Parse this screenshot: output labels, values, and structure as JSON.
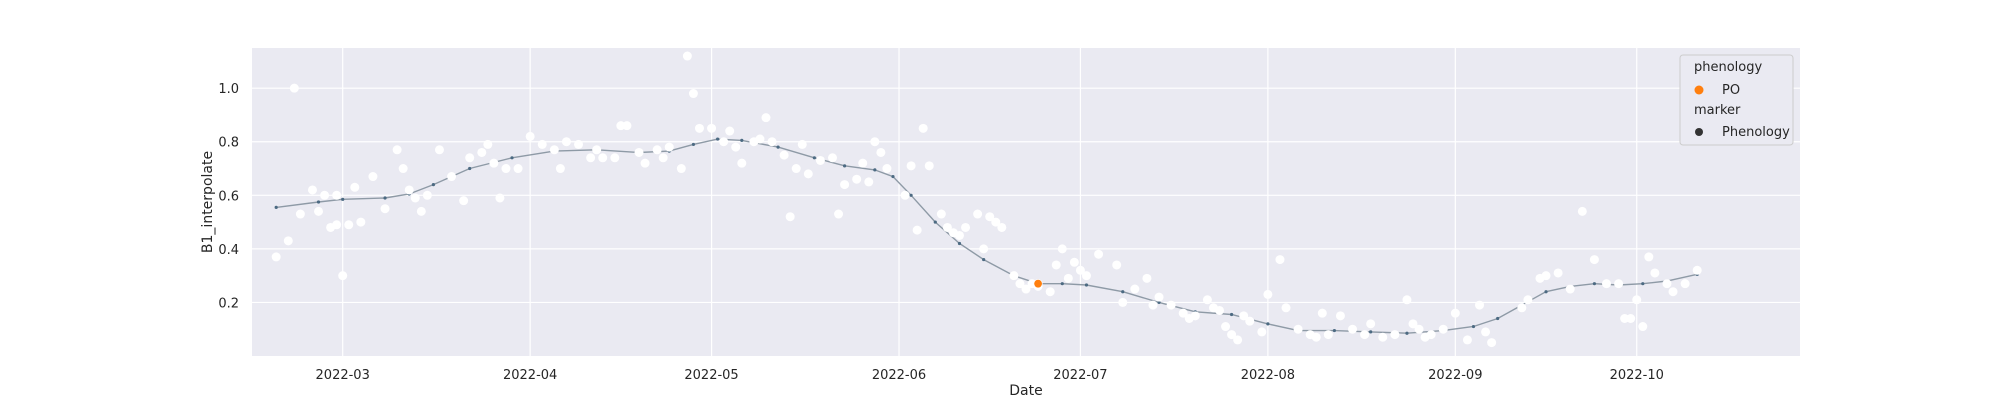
{
  "chart_data": {
    "type": "scatter",
    "title": "",
    "xlabel": "Date",
    "ylabel": "B1_interpolate",
    "x_axis": {
      "type": "date",
      "range": [
        "2022-02-14",
        "2022-10-28"
      ],
      "ticks": [
        "2022-03-01",
        "2022-04-01",
        "2022-05-01",
        "2022-06-01",
        "2022-07-01",
        "2022-08-01",
        "2022-09-01",
        "2022-10-01"
      ],
      "tick_labels": [
        "2022-03",
        "2022-04",
        "2022-05",
        "2022-06",
        "2022-07",
        "2022-08",
        "2022-09",
        "2022-10"
      ]
    },
    "y_axis": {
      "range": [
        0.0,
        1.15
      ],
      "ticks": [
        0.2,
        0.4,
        0.6,
        0.8,
        1.0
      ],
      "tick_labels": [
        "0.2",
        "0.4",
        "0.6",
        "0.8",
        "1.0"
      ]
    },
    "grid": true,
    "background": "#eaeaf2",
    "colors": {
      "observed": "#ffffff",
      "fitted": "#4c6a82",
      "phenology": "#ff7f0e",
      "marker_legend": "#333333"
    },
    "legend": {
      "placement": "top-right",
      "title_1": "phenology",
      "item_1": "PO",
      "title_2": "marker",
      "item_2": "Phenology"
    },
    "series": [
      {
        "kind": "observed-points",
        "points": [
          [
            "2022-02-18",
            0.37
          ],
          [
            "2022-02-20",
            0.43
          ],
          [
            "2022-02-21",
            1.0
          ],
          [
            "2022-02-22",
            0.53
          ],
          [
            "2022-02-24",
            0.62
          ],
          [
            "2022-02-25",
            0.54
          ],
          [
            "2022-02-26",
            0.6
          ],
          [
            "2022-02-27",
            0.48
          ],
          [
            "2022-02-28",
            0.6
          ],
          [
            "2022-02-28",
            0.49
          ],
          [
            "2022-03-01",
            0.3
          ],
          [
            "2022-03-02",
            0.49
          ],
          [
            "2022-03-03",
            0.63
          ],
          [
            "2022-03-04",
            0.5
          ],
          [
            "2022-03-06",
            0.67
          ],
          [
            "2022-03-08",
            0.55
          ],
          [
            "2022-03-10",
            0.77
          ],
          [
            "2022-03-11",
            0.7
          ],
          [
            "2022-03-12",
            0.62
          ],
          [
            "2022-03-13",
            0.59
          ],
          [
            "2022-03-14",
            0.54
          ],
          [
            "2022-03-15",
            0.6
          ],
          [
            "2022-03-17",
            0.77
          ],
          [
            "2022-03-19",
            0.67
          ],
          [
            "2022-03-21",
            0.58
          ],
          [
            "2022-03-22",
            0.74
          ],
          [
            "2022-03-24",
            0.76
          ],
          [
            "2022-03-25",
            0.79
          ],
          [
            "2022-03-26",
            0.72
          ],
          [
            "2022-03-27",
            0.59
          ],
          [
            "2022-03-28",
            0.7
          ],
          [
            "2022-03-30",
            0.7
          ],
          [
            "2022-04-01",
            0.82
          ],
          [
            "2022-04-03",
            0.79
          ],
          [
            "2022-04-05",
            0.77
          ],
          [
            "2022-04-06",
            0.7
          ],
          [
            "2022-04-07",
            0.8
          ],
          [
            "2022-04-09",
            0.79
          ],
          [
            "2022-04-11",
            0.74
          ],
          [
            "2022-04-12",
            0.77
          ],
          [
            "2022-04-13",
            0.74
          ],
          [
            "2022-04-15",
            0.74
          ],
          [
            "2022-04-16",
            0.86
          ],
          [
            "2022-04-17",
            0.86
          ],
          [
            "2022-04-19",
            0.76
          ],
          [
            "2022-04-20",
            0.72
          ],
          [
            "2022-04-22",
            0.77
          ],
          [
            "2022-04-23",
            0.74
          ],
          [
            "2022-04-24",
            0.78
          ],
          [
            "2022-04-26",
            0.7
          ],
          [
            "2022-04-27",
            1.12
          ],
          [
            "2022-04-28",
            0.98
          ],
          [
            "2022-04-29",
            0.85
          ],
          [
            "2022-05-01",
            0.85
          ],
          [
            "2022-05-03",
            0.8
          ],
          [
            "2022-05-04",
            0.84
          ],
          [
            "2022-05-05",
            0.78
          ],
          [
            "2022-05-06",
            0.72
          ],
          [
            "2022-05-08",
            0.8
          ],
          [
            "2022-05-09",
            0.81
          ],
          [
            "2022-05-10",
            0.89
          ],
          [
            "2022-05-11",
            0.8
          ],
          [
            "2022-05-13",
            0.75
          ],
          [
            "2022-05-14",
            0.52
          ],
          [
            "2022-05-15",
            0.7
          ],
          [
            "2022-05-16",
            0.79
          ],
          [
            "2022-05-17",
            0.68
          ],
          [
            "2022-05-19",
            0.73
          ],
          [
            "2022-05-21",
            0.74
          ],
          [
            "2022-05-22",
            0.53
          ],
          [
            "2022-05-23",
            0.64
          ],
          [
            "2022-05-25",
            0.66
          ],
          [
            "2022-05-26",
            0.72
          ],
          [
            "2022-05-27",
            0.65
          ],
          [
            "2022-05-28",
            0.8
          ],
          [
            "2022-05-29",
            0.76
          ],
          [
            "2022-05-30",
            0.7
          ],
          [
            "2022-06-02",
            0.6
          ],
          [
            "2022-06-03",
            0.71
          ],
          [
            "2022-06-04",
            0.47
          ],
          [
            "2022-06-05",
            0.85
          ],
          [
            "2022-06-06",
            0.71
          ],
          [
            "2022-06-08",
            0.53
          ],
          [
            "2022-06-09",
            0.48
          ],
          [
            "2022-06-10",
            0.46
          ],
          [
            "2022-06-11",
            0.45
          ],
          [
            "2022-06-12",
            0.48
          ],
          [
            "2022-06-14",
            0.53
          ],
          [
            "2022-06-15",
            0.4
          ],
          [
            "2022-06-16",
            0.52
          ],
          [
            "2022-06-17",
            0.5
          ],
          [
            "2022-06-18",
            0.48
          ],
          [
            "2022-06-20",
            0.3
          ],
          [
            "2022-06-21",
            0.27
          ],
          [
            "2022-06-22",
            0.25
          ],
          [
            "2022-06-23",
            0.27
          ],
          [
            "2022-06-24",
            0.26
          ],
          [
            "2022-06-26",
            0.24
          ],
          [
            "2022-06-27",
            0.34
          ],
          [
            "2022-06-28",
            0.4
          ],
          [
            "2022-06-29",
            0.29
          ],
          [
            "2022-06-30",
            0.35
          ],
          [
            "2022-07-01",
            0.32
          ],
          [
            "2022-07-02",
            0.3
          ],
          [
            "2022-07-04",
            0.38
          ],
          [
            "2022-07-07",
            0.34
          ],
          [
            "2022-07-08",
            0.2
          ],
          [
            "2022-07-10",
            0.25
          ],
          [
            "2022-07-12",
            0.29
          ],
          [
            "2022-07-13",
            0.19
          ],
          [
            "2022-07-14",
            0.22
          ],
          [
            "2022-07-16",
            0.19
          ],
          [
            "2022-07-18",
            0.16
          ],
          [
            "2022-07-19",
            0.14
          ],
          [
            "2022-07-20",
            0.15
          ],
          [
            "2022-07-22",
            0.21
          ],
          [
            "2022-07-23",
            0.18
          ],
          [
            "2022-07-24",
            0.17
          ],
          [
            "2022-07-25",
            0.11
          ],
          [
            "2022-07-26",
            0.08
          ],
          [
            "2022-07-27",
            0.06
          ],
          [
            "2022-07-28",
            0.15
          ],
          [
            "2022-07-29",
            0.13
          ],
          [
            "2022-07-31",
            0.09
          ],
          [
            "2022-08-01",
            0.23
          ],
          [
            "2022-08-03",
            0.36
          ],
          [
            "2022-08-04",
            0.18
          ],
          [
            "2022-08-06",
            0.1
          ],
          [
            "2022-08-08",
            0.08
          ],
          [
            "2022-08-09",
            0.07
          ],
          [
            "2022-08-10",
            0.16
          ],
          [
            "2022-08-11",
            0.08
          ],
          [
            "2022-08-13",
            0.15
          ],
          [
            "2022-08-15",
            0.1
          ],
          [
            "2022-08-17",
            0.08
          ],
          [
            "2022-08-18",
            0.12
          ],
          [
            "2022-08-20",
            0.07
          ],
          [
            "2022-08-22",
            0.08
          ],
          [
            "2022-08-24",
            0.21
          ],
          [
            "2022-08-25",
            0.12
          ],
          [
            "2022-08-26",
            0.1
          ],
          [
            "2022-08-27",
            0.07
          ],
          [
            "2022-08-28",
            0.08
          ],
          [
            "2022-08-30",
            0.1
          ],
          [
            "2022-09-01",
            0.16
          ],
          [
            "2022-09-03",
            0.06
          ],
          [
            "2022-09-05",
            0.19
          ],
          [
            "2022-09-06",
            0.09
          ],
          [
            "2022-09-07",
            0.05
          ],
          [
            "2022-09-12",
            0.18
          ],
          [
            "2022-09-13",
            0.21
          ],
          [
            "2022-09-15",
            0.29
          ],
          [
            "2022-09-16",
            0.3
          ],
          [
            "2022-09-18",
            0.31
          ],
          [
            "2022-09-20",
            0.25
          ],
          [
            "2022-09-22",
            0.54
          ],
          [
            "2022-09-24",
            0.36
          ],
          [
            "2022-09-26",
            0.27
          ],
          [
            "2022-09-28",
            0.27
          ],
          [
            "2022-09-29",
            0.14
          ],
          [
            "2022-09-30",
            0.14
          ],
          [
            "2022-10-01",
            0.21
          ],
          [
            "2022-10-02",
            0.11
          ],
          [
            "2022-10-03",
            0.37
          ],
          [
            "2022-10-04",
            0.31
          ],
          [
            "2022-10-06",
            0.27
          ],
          [
            "2022-10-07",
            0.24
          ],
          [
            "2022-10-09",
            0.27
          ],
          [
            "2022-10-11",
            0.32
          ]
        ]
      },
      {
        "kind": "fitted-curve",
        "points": [
          [
            "2022-02-18",
            0.555
          ],
          [
            "2022-02-25",
            0.575
          ],
          [
            "2022-03-01",
            0.585
          ],
          [
            "2022-03-08",
            0.59
          ],
          [
            "2022-03-12",
            0.605
          ],
          [
            "2022-03-16",
            0.64
          ],
          [
            "2022-03-22",
            0.7
          ],
          [
            "2022-03-29",
            0.74
          ],
          [
            "2022-04-05",
            0.765
          ],
          [
            "2022-04-12",
            0.77
          ],
          [
            "2022-04-19",
            0.76
          ],
          [
            "2022-04-24",
            0.765
          ],
          [
            "2022-04-28",
            0.79
          ],
          [
            "2022-05-02",
            0.81
          ],
          [
            "2022-05-06",
            0.805
          ],
          [
            "2022-05-12",
            0.78
          ],
          [
            "2022-05-18",
            0.74
          ],
          [
            "2022-05-23",
            0.71
          ],
          [
            "2022-05-28",
            0.695
          ],
          [
            "2022-05-31",
            0.67
          ],
          [
            "2022-06-03",
            0.6
          ],
          [
            "2022-06-07",
            0.5
          ],
          [
            "2022-06-11",
            0.42
          ],
          [
            "2022-06-15",
            0.36
          ],
          [
            "2022-06-20",
            0.3
          ],
          [
            "2022-06-24",
            0.27
          ],
          [
            "2022-06-28",
            0.27
          ],
          [
            "2022-07-02",
            0.265
          ],
          [
            "2022-07-08",
            0.24
          ],
          [
            "2022-07-14",
            0.2
          ],
          [
            "2022-07-20",
            0.165
          ],
          [
            "2022-07-26",
            0.155
          ],
          [
            "2022-08-01",
            0.12
          ],
          [
            "2022-08-06",
            0.095
          ],
          [
            "2022-08-12",
            0.095
          ],
          [
            "2022-08-18",
            0.09
          ],
          [
            "2022-08-24",
            0.085
          ],
          [
            "2022-08-30",
            0.095
          ],
          [
            "2022-09-04",
            0.11
          ],
          [
            "2022-09-08",
            0.14
          ],
          [
            "2022-09-12",
            0.19
          ],
          [
            "2022-09-16",
            0.24
          ],
          [
            "2022-09-20",
            0.26
          ],
          [
            "2022-09-24",
            0.27
          ],
          [
            "2022-09-28",
            0.265
          ],
          [
            "2022-10-02",
            0.27
          ],
          [
            "2022-10-06",
            0.28
          ],
          [
            "2022-10-11",
            0.305
          ]
        ]
      },
      {
        "kind": "phenology-marker",
        "name": "PO",
        "points": [
          [
            "2022-06-24",
            0.27
          ]
        ]
      }
    ]
  }
}
